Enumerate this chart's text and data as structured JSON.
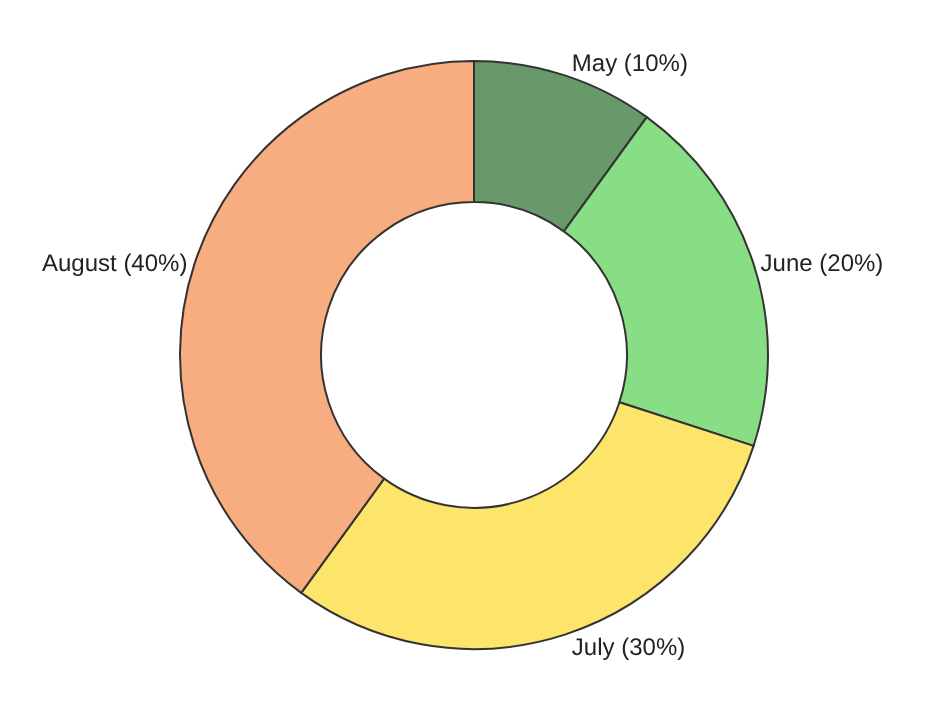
{
  "chart_data": {
    "type": "donut",
    "categories": [
      "May (10%)",
      "June (20%)",
      "July (30%)",
      "August (40%)"
    ],
    "values": [
      10,
      20,
      30,
      40
    ],
    "colors": [
      "#67996b",
      "#88de84",
      "#fde46a",
      "#f8ad80"
    ],
    "legend": false
  }
}
